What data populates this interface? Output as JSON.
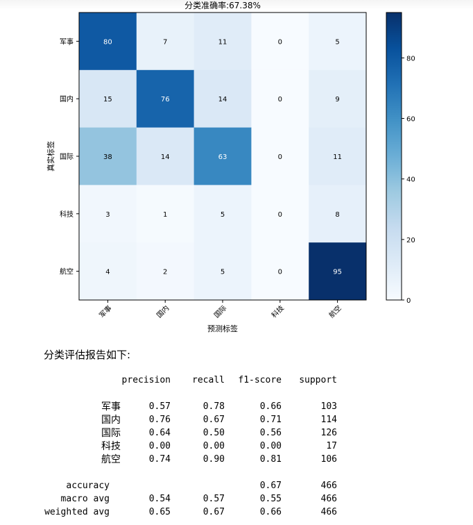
{
  "chart_data": {
    "type": "heatmap",
    "title": "分类准确率:67.38%",
    "xlabel": "预测标签",
    "ylabel": "真实标签",
    "row_labels": [
      "军事",
      "国内",
      "国际",
      "科技",
      "航空"
    ],
    "col_labels": [
      "军事",
      "国内",
      "国际",
      "科技",
      "航空"
    ],
    "values": [
      [
        80,
        7,
        11,
        0,
        5
      ],
      [
        15,
        76,
        14,
        0,
        9
      ],
      [
        38,
        14,
        63,
        0,
        11
      ],
      [
        3,
        1,
        5,
        0,
        8
      ],
      [
        4,
        2,
        5,
        0,
        95
      ]
    ],
    "colormap": "Blues",
    "vmin": 0,
    "vmax": 95,
    "colorbar_ticks": [
      0,
      20,
      40,
      60,
      80
    ],
    "colors": {
      "low": "#f7fbff",
      "high": "#08306b",
      "text_dark": "#000000",
      "text_light": "#ffffff"
    }
  },
  "report": {
    "heading": "分类评估报告如下:",
    "headers": [
      "precision",
      "recall",
      "f1-score",
      "support"
    ],
    "rows": [
      {
        "label": "军事",
        "precision": "0.57",
        "recall": "0.78",
        "f1": "0.66",
        "support": "103"
      },
      {
        "label": "国内",
        "precision": "0.76",
        "recall": "0.67",
        "f1": "0.71",
        "support": "114"
      },
      {
        "label": "国际",
        "precision": "0.64",
        "recall": "0.50",
        "f1": "0.56",
        "support": "126"
      },
      {
        "label": "科技",
        "precision": "0.00",
        "recall": "0.00",
        "f1": "0.00",
        "support": "17"
      },
      {
        "label": "航空",
        "precision": "0.74",
        "recall": "0.90",
        "f1": "0.81",
        "support": "106"
      }
    ],
    "accuracy": {
      "label": "accuracy",
      "f1": "0.67",
      "support": "466"
    },
    "macro": {
      "label": "macro avg",
      "precision": "0.54",
      "recall": "0.57",
      "f1": "0.55",
      "support": "466"
    },
    "weighted": {
      "label": "weighted avg",
      "precision": "0.65",
      "recall": "0.67",
      "f1": "0.66",
      "support": "466"
    }
  }
}
